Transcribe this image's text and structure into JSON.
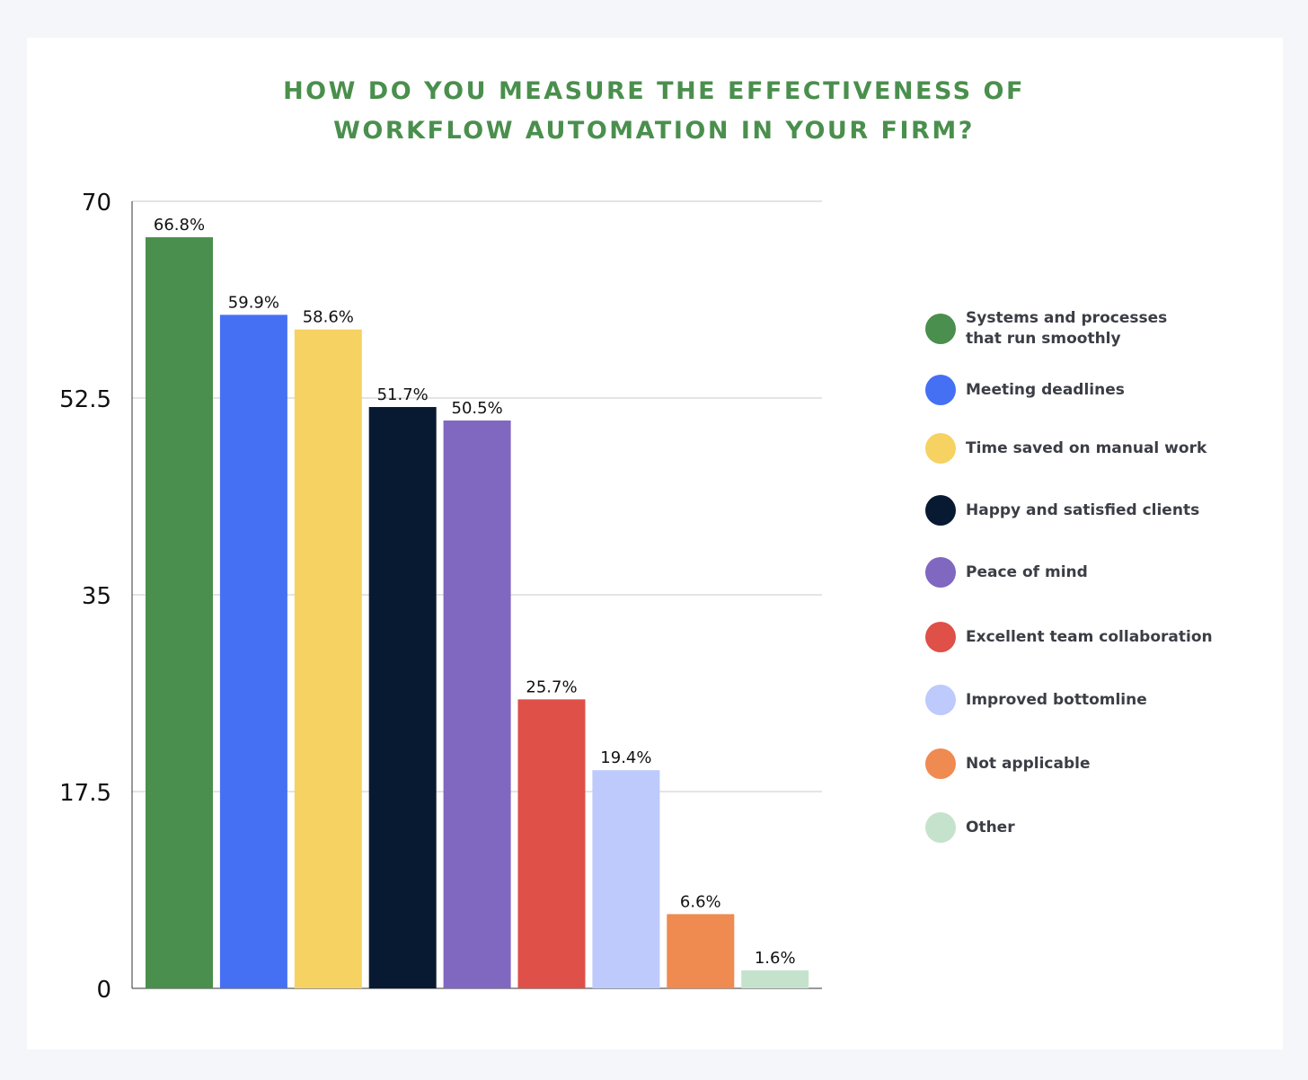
{
  "title_lines": [
    "HOW DO YOU MEASURE THE EFFECTIVENESS OF",
    "WORKFLOW AUTOMATION IN YOUR FIRM?"
  ],
  "chart_data": {
    "type": "bar",
    "title": "HOW DO YOU MEASURE THE EFFECTIVENESS OF WORKFLOW AUTOMATION IN YOUR FIRM?",
    "xlabel": "",
    "ylabel": "",
    "ylim": [
      0,
      70
    ],
    "yticks": [
      0,
      17.5,
      35,
      52.5,
      70
    ],
    "ytick_labels": [
      "0",
      "17.5",
      "35",
      "52.5",
      "70"
    ],
    "grid": true,
    "legend_position": "right",
    "categories": [
      "Systems and processes that run smoothly",
      "Meeting deadlines",
      "Time saved on manual work",
      "Happy and satisfied clients",
      "Peace of mind",
      "Excellent team collaboration",
      "Improved bottomline",
      "Not applicable",
      "Other"
    ],
    "values": [
      66.8,
      59.9,
      58.6,
      51.7,
      50.5,
      25.7,
      19.4,
      6.6,
      1.6
    ],
    "data_labels": [
      "66.8%",
      "59.9%",
      "58.6%",
      "51.7%",
      "50.5%",
      "25.7%",
      "19.4%",
      "6.6%",
      "1.6%"
    ],
    "colors": [
      "#4a8f4d",
      "#4670f4",
      "#f6d262",
      "#081a32",
      "#8067c0",
      "#de5048",
      "#bdcafb",
      "#ef8a50",
      "#c5e3cc"
    ]
  },
  "legend": {
    "items": [
      {
        "label": "Systems and processes that run smoothly",
        "label_lines": [
          "Systems and processes",
          "that run smoothly"
        ],
        "color": "#4a8f4d"
      },
      {
        "label": "Meeting deadlines",
        "label_lines": [
          "Meeting deadlines"
        ],
        "color": "#4670f4"
      },
      {
        "label": "Time saved on manual work",
        "label_lines": [
          "Time saved on manual work"
        ],
        "color": "#f6d262"
      },
      {
        "label": "Happy and satisfied clients",
        "label_lines": [
          "Happy and satisfied clients"
        ],
        "color": "#081a32"
      },
      {
        "label": "Peace of mind",
        "label_lines": [
          "Peace of mind"
        ],
        "color": "#8067c0"
      },
      {
        "label": "Excellent team collaboration",
        "label_lines": [
          "Excellent team collaboration"
        ],
        "color": "#de5048"
      },
      {
        "label": "Improved bottomline",
        "label_lines": [
          "Improved bottomline"
        ],
        "color": "#bdcafb"
      },
      {
        "label": "Not applicable",
        "label_lines": [
          "Not applicable"
        ],
        "color": "#ef8a50"
      },
      {
        "label": "Other",
        "label_lines": [
          "Other"
        ],
        "color": "#c5e3cc"
      }
    ]
  }
}
